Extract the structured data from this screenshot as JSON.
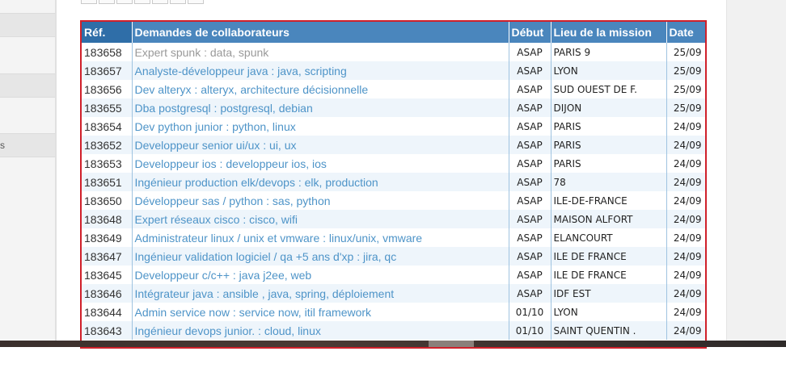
{
  "sidebar": {
    "tabs": [
      {
        "label": ""
      },
      {
        "label": ""
      },
      {
        "label": "s"
      }
    ]
  },
  "table": {
    "headers": {
      "ref": "Réf.",
      "title": "Demandes de collaborateurs",
      "start": "Début",
      "place": "Lieu de la mission",
      "date": "Date"
    },
    "rows": [
      {
        "ref": "183658",
        "title": "Expert spunk : data, spunk",
        "start": "ASAP",
        "place": "PARIS 9",
        "date": "25/09"
      },
      {
        "ref": "183657",
        "title": "Analyste-développeur java : java, scripting",
        "start": "ASAP",
        "place": "LYON",
        "date": "25/09"
      },
      {
        "ref": "183656",
        "title": "Dev alteryx : alteryx, architecture décisionnelle",
        "start": "ASAP",
        "place": "SUD OUEST DE F.",
        "date": "25/09"
      },
      {
        "ref": "183655",
        "title": "Dba postgresql : postgresql, debian",
        "start": "ASAP",
        "place": "DIJON",
        "date": "25/09"
      },
      {
        "ref": "183654",
        "title": "Dev python junior : python, linux",
        "start": "ASAP",
        "place": "PARIS",
        "date": "24/09"
      },
      {
        "ref": "183652",
        "title": "Developpeur senior ui/ux : ui, ux",
        "start": "ASAP",
        "place": "PARIS",
        "date": "24/09"
      },
      {
        "ref": "183653",
        "title": "Developpeur ios : developpeur ios, ios",
        "start": "ASAP",
        "place": "PARIS",
        "date": "24/09"
      },
      {
        "ref": "183651",
        "title": "Ingénieur production elk/devops : elk, production",
        "start": "ASAP",
        "place": "78",
        "date": "24/09"
      },
      {
        "ref": "183650",
        "title": "Développeur sas / python : sas, python",
        "start": "ASAP",
        "place": "ILE-DE-FRANCE",
        "date": "24/09"
      },
      {
        "ref": "183648",
        "title": "Expert réseaux cisco : cisco, wifi",
        "start": "ASAP",
        "place": "MAISON ALFORT",
        "date": "24/09"
      },
      {
        "ref": "183649",
        "title": "Administrateur linux / unix et vmware : linux/unix, vmware",
        "start": "ASAP",
        "place": "ELANCOURT",
        "date": "24/09"
      },
      {
        "ref": "183647",
        "title": "Ingénieur validation logiciel / qa +5 ans d'xp : jira, qc",
        "start": "ASAP",
        "place": "ILE DE FRANCE",
        "date": "24/09"
      },
      {
        "ref": "183645",
        "title": "Developpeur c/c++ : java j2ee, web",
        "start": "ASAP",
        "place": "ILE DE FRANCE",
        "date": "24/09"
      },
      {
        "ref": "183646",
        "title": "Intégrateur java : ansible , java, spring, déploiement",
        "start": "ASAP",
        "place": "IDF EST",
        "date": "24/09"
      },
      {
        "ref": "183644",
        "title": "Admin service now : service now, itil framework",
        "start": "01/10",
        "place": "LYON",
        "date": "24/09"
      },
      {
        "ref": "183643",
        "title": "Ingénieur devops junior. : cloud, linux",
        "start": "01/10",
        "place": "SAINT QUENTIN .",
        "date": "24/09"
      }
    ]
  },
  "colors": {
    "header_bg": "#4a86bd",
    "link": "#4e94c8",
    "highlight_border": "#d0202a"
  }
}
